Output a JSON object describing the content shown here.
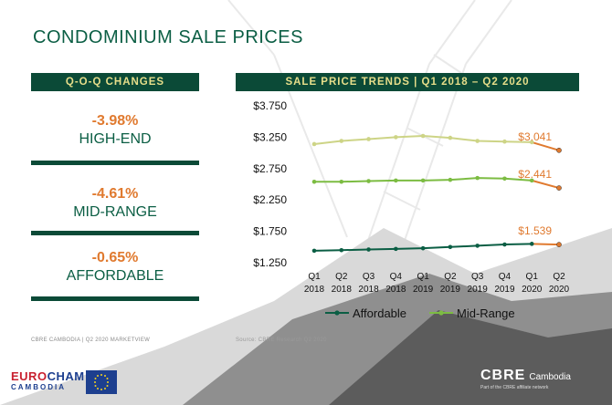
{
  "title": "CONDOMINIUM SALE PRICES",
  "qoq": {
    "heading": "Q-O-Q CHANGES",
    "items": [
      {
        "pct": "-3.98%",
        "segment": "HIGH-END"
      },
      {
        "pct": "-4.61%",
        "segment": "MID-RANGE"
      },
      {
        "pct": "-0.65%",
        "segment": "AFFORDABLE"
      }
    ]
  },
  "chart_header": "SALE PRICE TRENDS  |  Q1 2018 – Q2 2020",
  "chart_data": {
    "type": "line",
    "categories": [
      [
        "Q1",
        "2018"
      ],
      [
        "Q2",
        "2018"
      ],
      [
        "Q3",
        "2018"
      ],
      [
        "Q4",
        "2018"
      ],
      [
        "Q1",
        "2019"
      ],
      [
        "Q2",
        "2019"
      ],
      [
        "Q3",
        "2019"
      ],
      [
        "Q4",
        "2019"
      ],
      [
        "Q1",
        "2020"
      ],
      [
        "Q2",
        "2020"
      ]
    ],
    "y_ticks": [
      "$3.750",
      "$3.250",
      "$2.750",
      "$2.250",
      "$1.750",
      "$1.250"
    ],
    "ylim": [
      1.25,
      3.75
    ],
    "series": [
      {
        "name": "",
        "color": "#cdd486",
        "values": [
          3.14,
          3.19,
          3.22,
          3.25,
          3.27,
          3.24,
          3.19,
          3.18,
          3.17,
          3.041
        ],
        "end_label": "$3.041"
      },
      {
        "name": "Mid-Range",
        "color": "#7cbc42",
        "values": [
          2.54,
          2.54,
          2.55,
          2.56,
          2.56,
          2.57,
          2.6,
          2.59,
          2.56,
          2.441
        ],
        "end_label": "$2.441"
      },
      {
        "name": "Affordable",
        "color": "#0b5e44",
        "values": [
          1.44,
          1.45,
          1.46,
          1.47,
          1.48,
          1.5,
          1.52,
          1.54,
          1.55,
          1.539
        ],
        "end_label": "$1.539"
      }
    ],
    "last_point_color": "#e07a2f",
    "legend": [
      "Affordable",
      "Mid-Range"
    ],
    "legend_position": "bottom",
    "grid": false
  },
  "footer": {
    "left": "CBRE CAMBODIA  |  Q2 2020 MARKETVIEW",
    "source": "Source: CBRE Research Q2 2020"
  },
  "logos": {
    "eurocham_a": "EURO",
    "eurocham_b": "CHAM",
    "eurocham_line2": "CAMBODIA",
    "cbre": "CBRE",
    "cbre_office": "Cambodia",
    "cbre_tagline": "Part of the CBRE affiliate network"
  }
}
